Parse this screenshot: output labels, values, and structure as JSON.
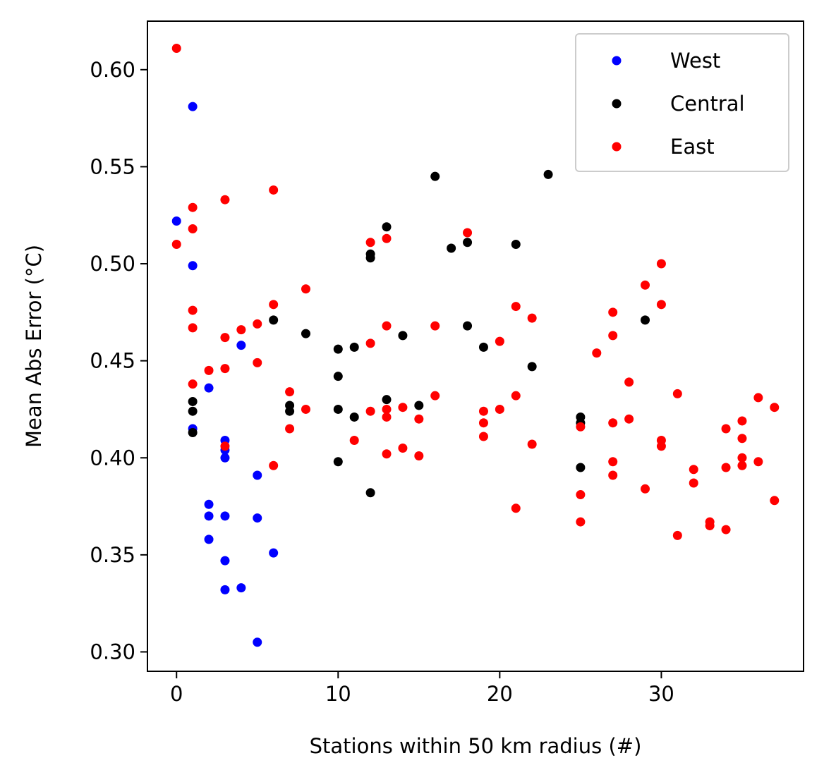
{
  "chart_data": {
    "type": "scatter",
    "xlabel": "Stations within 50 km radius (#)",
    "ylabel": "Mean Abs Error (°C)",
    "xlim": [
      -1.8,
      38.8
    ],
    "ylim": [
      0.29,
      0.625
    ],
    "xticks": [
      0,
      10,
      20,
      30
    ],
    "yticks": [
      0.3,
      0.35,
      0.4,
      0.45,
      0.5,
      0.55,
      0.6
    ],
    "xtick_labels": [
      "0",
      "10",
      "20",
      "30"
    ],
    "ytick_labels": [
      "0.30",
      "0.35",
      "0.40",
      "0.45",
      "0.50",
      "0.55",
      "0.60"
    ],
    "grid": false,
    "legend_position": "top-right",
    "series": [
      {
        "name": "West",
        "color": "#0000ff",
        "points": [
          [
            0,
            0.522
          ],
          [
            1,
            0.581
          ],
          [
            1,
            0.499
          ],
          [
            1,
            0.415
          ],
          [
            2,
            0.436
          ],
          [
            2,
            0.376
          ],
          [
            2,
            0.37
          ],
          [
            2,
            0.358
          ],
          [
            3,
            0.409
          ],
          [
            3,
            0.404
          ],
          [
            3,
            0.4
          ],
          [
            3,
            0.37
          ],
          [
            3,
            0.347
          ],
          [
            3,
            0.332
          ],
          [
            4,
            0.458
          ],
          [
            4,
            0.333
          ],
          [
            5,
            0.391
          ],
          [
            5,
            0.369
          ],
          [
            5,
            0.305
          ],
          [
            6,
            0.351
          ]
        ]
      },
      {
        "name": "Central",
        "color": "#000000",
        "points": [
          [
            1,
            0.429
          ],
          [
            1,
            0.424
          ],
          [
            1,
            0.413
          ],
          [
            6,
            0.471
          ],
          [
            7,
            0.427
          ],
          [
            7,
            0.424
          ],
          [
            8,
            0.464
          ],
          [
            10,
            0.456
          ],
          [
            10,
            0.442
          ],
          [
            10,
            0.425
          ],
          [
            10,
            0.398
          ],
          [
            11,
            0.457
          ],
          [
            11,
            0.421
          ],
          [
            12,
            0.505
          ],
          [
            12,
            0.503
          ],
          [
            12,
            0.382
          ],
          [
            13,
            0.519
          ],
          [
            13,
            0.43
          ],
          [
            14,
            0.463
          ],
          [
            15,
            0.427
          ],
          [
            16,
            0.545
          ],
          [
            17,
            0.508
          ],
          [
            18,
            0.511
          ],
          [
            18,
            0.468
          ],
          [
            19,
            0.457
          ],
          [
            21,
            0.51
          ],
          [
            22,
            0.447
          ],
          [
            23,
            0.546
          ],
          [
            25,
            0.421
          ],
          [
            25,
            0.418
          ],
          [
            25,
            0.395
          ],
          [
            29,
            0.471
          ]
        ]
      },
      {
        "name": "East",
        "color": "#ff0000",
        "points": [
          [
            0,
            0.611
          ],
          [
            0,
            0.51
          ],
          [
            1,
            0.529
          ],
          [
            1,
            0.518
          ],
          [
            1,
            0.476
          ],
          [
            1,
            0.467
          ],
          [
            1,
            0.438
          ],
          [
            2,
            0.445
          ],
          [
            3,
            0.533
          ],
          [
            3,
            0.462
          ],
          [
            3,
            0.446
          ],
          [
            3,
            0.406
          ],
          [
            4,
            0.466
          ],
          [
            5,
            0.469
          ],
          [
            5,
            0.449
          ],
          [
            6,
            0.538
          ],
          [
            6,
            0.479
          ],
          [
            6,
            0.396
          ],
          [
            7,
            0.434
          ],
          [
            7,
            0.415
          ],
          [
            8,
            0.487
          ],
          [
            8,
            0.425
          ],
          [
            11,
            0.409
          ],
          [
            12,
            0.511
          ],
          [
            12,
            0.459
          ],
          [
            12,
            0.424
          ],
          [
            13,
            0.513
          ],
          [
            13,
            0.468
          ],
          [
            13,
            0.425
          ],
          [
            13,
            0.421
          ],
          [
            13,
            0.402
          ],
          [
            14,
            0.426
          ],
          [
            14,
            0.405
          ],
          [
            15,
            0.42
          ],
          [
            15,
            0.401
          ],
          [
            16,
            0.468
          ],
          [
            16,
            0.432
          ],
          [
            18,
            0.516
          ],
          [
            19,
            0.424
          ],
          [
            19,
            0.418
          ],
          [
            19,
            0.411
          ],
          [
            20,
            0.46
          ],
          [
            20,
            0.425
          ],
          [
            21,
            0.478
          ],
          [
            21,
            0.432
          ],
          [
            21,
            0.374
          ],
          [
            22,
            0.472
          ],
          [
            22,
            0.407
          ],
          [
            25,
            0.416
          ],
          [
            25,
            0.381
          ],
          [
            25,
            0.367
          ],
          [
            26,
            0.454
          ],
          [
            27,
            0.475
          ],
          [
            27,
            0.463
          ],
          [
            27,
            0.418
          ],
          [
            27,
            0.398
          ],
          [
            27,
            0.391
          ],
          [
            28,
            0.439
          ],
          [
            28,
            0.42
          ],
          [
            29,
            0.489
          ],
          [
            29,
            0.384
          ],
          [
            30,
            0.5
          ],
          [
            30,
            0.479
          ],
          [
            30,
            0.409
          ],
          [
            30,
            0.406
          ],
          [
            31,
            0.433
          ],
          [
            31,
            0.36
          ],
          [
            32,
            0.394
          ],
          [
            32,
            0.387
          ],
          [
            33,
            0.367
          ],
          [
            33,
            0.365
          ],
          [
            34,
            0.415
          ],
          [
            34,
            0.395
          ],
          [
            34,
            0.363
          ],
          [
            35,
            0.419
          ],
          [
            35,
            0.41
          ],
          [
            35,
            0.4
          ],
          [
            35,
            0.396
          ],
          [
            36,
            0.431
          ],
          [
            36,
            0.398
          ],
          [
            37,
            0.426
          ],
          [
            37,
            0.378
          ]
        ]
      }
    ]
  }
}
